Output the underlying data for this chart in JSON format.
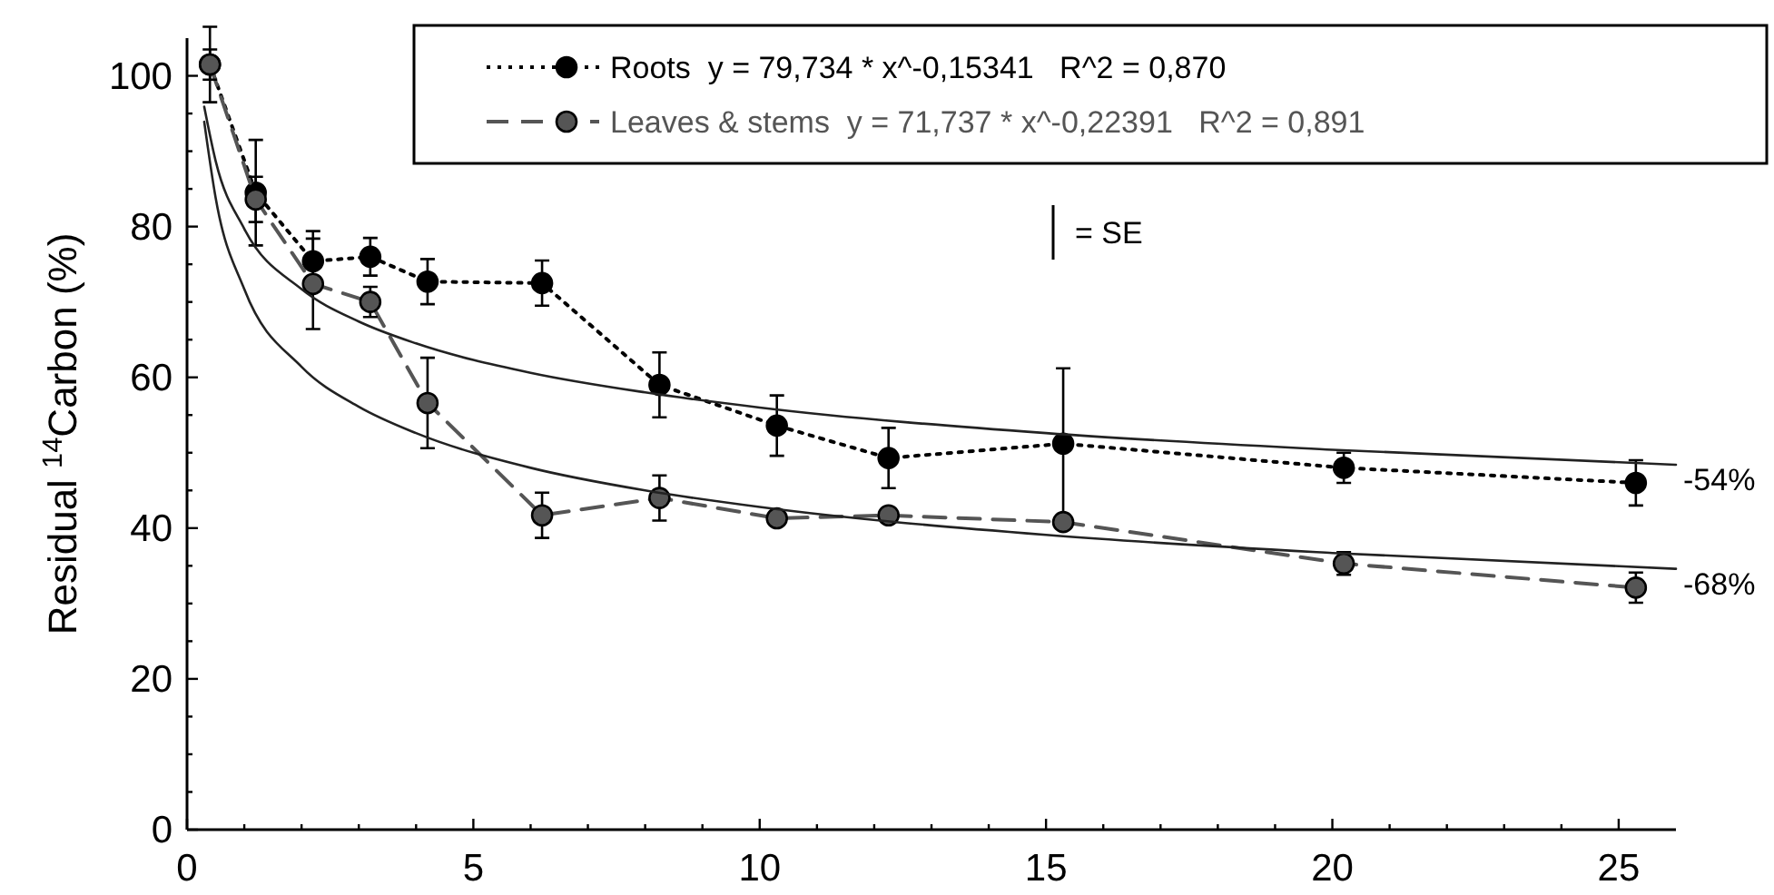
{
  "chart_data": {
    "type": "line",
    "ylabel": "Residual $^{14}$Carbon (%)",
    "xlim": [
      0,
      26
    ],
    "ylim": [
      0,
      105
    ],
    "xticks": [
      0,
      {
        "value": 1,
        "label": null
      },
      {
        "value": 2,
        "label": null
      },
      {
        "value": 3,
        "label": null
      },
      {
        "value": 4,
        "label": null
      },
      5,
      {
        "value": 6,
        "label": null
      },
      {
        "value": 7,
        "label": null
      },
      {
        "value": 8,
        "label": null
      },
      {
        "value": 9,
        "label": null
      },
      10,
      {
        "value": 11,
        "label": null
      },
      {
        "value": 12,
        "label": null
      },
      {
        "value": 13,
        "label": null
      },
      {
        "value": 14,
        "label": null
      },
      15,
      {
        "value": 16,
        "label": null
      },
      {
        "value": 17,
        "label": null
      },
      {
        "value": 18,
        "label": null
      },
      {
        "value": 19,
        "label": null
      },
      20,
      {
        "value": 21,
        "label": null
      },
      {
        "value": 22,
        "label": null
      },
      {
        "value": 23,
        "label": null
      },
      {
        "value": 24,
        "label": null
      },
      25
    ],
    "yticks": [
      0,
      {
        "value": 5,
        "label": null
      },
      {
        "value": 10,
        "label": null
      },
      {
        "value": 15,
        "label": null
      },
      20,
      {
        "value": 25,
        "label": null
      },
      {
        "value": 30,
        "label": null
      },
      {
        "value": 35,
        "label": null
      },
      40,
      {
        "value": 45,
        "label": null
      },
      {
        "value": 50,
        "label": null
      },
      {
        "value": 55,
        "label": null
      },
      60,
      {
        "value": 65,
        "label": null
      },
      {
        "value": 70,
        "label": null
      },
      {
        "value": 75,
        "label": null
      },
      80,
      {
        "value": 85,
        "label": null
      },
      {
        "value": 90,
        "label": null
      },
      {
        "value": 95,
        "label": null
      },
      100
    ],
    "grid": false,
    "legend": "top right",
    "series": [
      {
        "name": "Roots  y = 79,734 * x^-0,15341   R^2 = 0,870",
        "color": "#000000",
        "line_style": "dotted",
        "marker": "circle",
        "x": [
          0.4,
          1.2,
          2.2,
          3.2,
          4.2,
          6.2,
          8.25,
          10.3,
          12.25,
          15.3,
          20.2,
          25.3
        ],
        "values": [
          101.5,
          84.5,
          75.4,
          76,
          72.7,
          72.5,
          59,
          53.6,
          49.3,
          51.2,
          48,
          46
        ],
        "errors": [
          5,
          7,
          4,
          2.5,
          3,
          3,
          4.3,
          4,
          4,
          10,
          2,
          3
        ]
      },
      {
        "name": "Leaves & stems  y = 71,737 * x^-0,22391   R^2 = 0,891",
        "color": "#555555",
        "line_style": "dashed",
        "marker": "circle",
        "x": [
          0.4,
          1.2,
          2.2,
          3.2,
          4.2,
          6.2,
          8.25,
          10.3,
          12.25,
          15.3,
          20.2,
          25.3
        ],
        "values": [
          101.5,
          83.6,
          72.4,
          70,
          56.6,
          41.7,
          44,
          41.3,
          41.7,
          40.8,
          35.3,
          32.1
        ],
        "errors": [
          2,
          3,
          6,
          2,
          6,
          3,
          3,
          null,
          null,
          null,
          1.5,
          2
        ]
      },
      {
        "type": "line",
        "color": "#222222",
        "line_style": "solid",
        "marker": "none",
        "x": [
          0.3,
          0.5,
          1,
          2,
          3,
          4,
          6,
          8,
          10,
          15,
          20,
          26
        ],
        "values": [
          95.9,
          88.7,
          79.7,
          71.7,
          67.4,
          64.5,
          60.6,
          58,
          56,
          52.6,
          50.4,
          48.4
        ]
      },
      {
        "type": "line",
        "color": "#222222",
        "line_style": "solid",
        "marker": "none",
        "x": [
          0.3,
          0.5,
          1,
          2,
          3,
          4,
          6,
          8,
          10,
          15,
          20,
          26
        ],
        "values": [
          93.9,
          83.8,
          71.7,
          61.4,
          56.1,
          52.6,
          48,
          45,
          42.8,
          39.1,
          36.7,
          34.6
        ]
      }
    ],
    "annotations": [
      "= SE",
      "-54%",
      "-68%"
    ]
  }
}
